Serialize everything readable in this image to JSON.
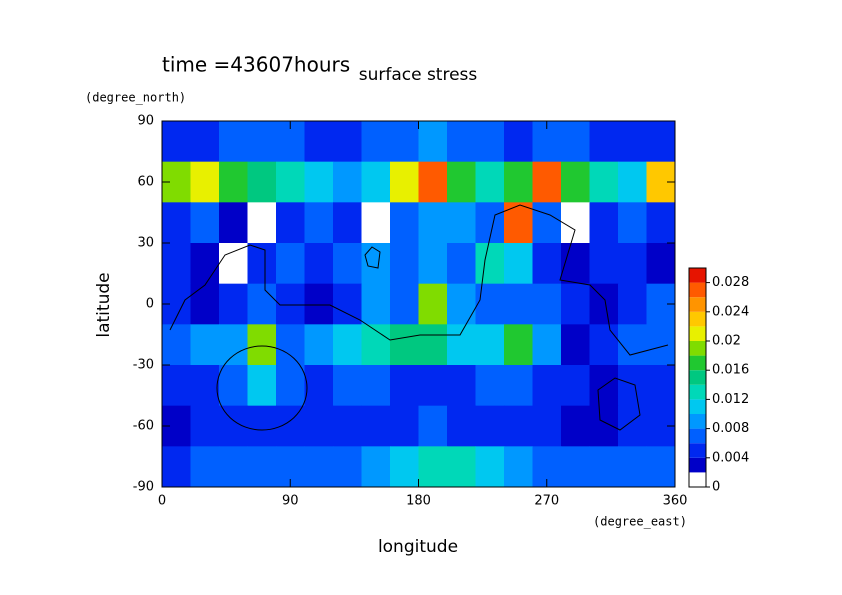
{
  "chart_data": {
    "type": "contour",
    "title": "surface stress",
    "subtitle": "time =43607hours",
    "x_label": "longitude",
    "x_unit": "(degree_east)",
    "y_label": "latitude",
    "y_unit": "(degree_north)",
    "x": [
      10,
      30,
      50,
      70,
      90,
      110,
      130,
      150,
      170,
      190,
      210,
      230,
      250,
      270,
      290,
      310,
      330,
      350
    ],
    "y": [
      80,
      60,
      40,
      20,
      0,
      -20,
      -40,
      -60,
      -80
    ],
    "values": [
      [
        0.004,
        0.004,
        0.006,
        0.006,
        0.006,
        0.004,
        0.004,
        0.006,
        0.006,
        0.008,
        0.006,
        0.006,
        0.004,
        0.006,
        0.006,
        0.004,
        0.004,
        0.004
      ],
      [
        0.018,
        0.02,
        0.016,
        0.014,
        0.012,
        0.01,
        0.008,
        0.01,
        0.02,
        0.026,
        0.016,
        0.012,
        0.016,
        0.026,
        0.016,
        0.012,
        0.01,
        0.022
      ],
      [
        0.004,
        0.006,
        0.002,
        0,
        0.004,
        0.006,
        0.004,
        0,
        0.006,
        0.008,
        0.008,
        0.006,
        0.026,
        0.006,
        0,
        0.004,
        0.006,
        0.004
      ],
      [
        0.004,
        0.002,
        0,
        0.004,
        0.006,
        0.004,
        0.006,
        0.008,
        0.006,
        0.008,
        0.006,
        0.012,
        0.01,
        0.004,
        0.002,
        0.004,
        0.004,
        0.002
      ],
      [
        0.004,
        0.002,
        0.004,
        0.006,
        0.004,
        0.002,
        0.004,
        0.008,
        0.006,
        0.018,
        0.008,
        0.006,
        0.006,
        0.006,
        0.004,
        0.002,
        0.004,
        0.006
      ],
      [
        0.006,
        0.008,
        0.008,
        0.018,
        0.006,
        0.008,
        0.01,
        0.012,
        0.014,
        0.014,
        0.01,
        0.01,
        0.016,
        0.008,
        0.002,
        0.004,
        0.006,
        0.006
      ],
      [
        0.004,
        0.004,
        0.006,
        0.01,
        0.006,
        0.004,
        0.006,
        0.006,
        0.004,
        0.004,
        0.004,
        0.006,
        0.006,
        0.004,
        0.004,
        0.002,
        0.004,
        0.004
      ],
      [
        0.002,
        0.004,
        0.004,
        0.004,
        0.004,
        0.004,
        0.004,
        0.004,
        0.004,
        0.006,
        0.004,
        0.004,
        0.004,
        0.004,
        0.002,
        0.002,
        0.004,
        0.004
      ],
      [
        0.004,
        0.006,
        0.006,
        0.006,
        0.006,
        0.006,
        0.006,
        0.008,
        0.01,
        0.012,
        0.012,
        0.01,
        0.008,
        0.006,
        0.006,
        0.006,
        0.006,
        0.006
      ]
    ],
    "xlim": [
      0,
      360
    ],
    "ylim": [
      -90,
      90
    ],
    "xticks": [
      0,
      90,
      180,
      270,
      360
    ],
    "yticks": [
      -90,
      -60,
      -30,
      0,
      30,
      60,
      90
    ],
    "levels": [
      0,
      0.002,
      0.004,
      0.006,
      0.008,
      0.01,
      0.012,
      0.014,
      0.016,
      0.018,
      0.02,
      0.022,
      0.024,
      0.026,
      0.028
    ],
    "colors": [
      "#ffffff",
      "#0000c8",
      "#0028f0",
      "#0060ff",
      "#0098ff",
      "#00c8f0",
      "#00d8b8",
      "#00c880",
      "#20c830",
      "#80dc00",
      "#e8f000",
      "#ffc800",
      "#ff9400",
      "#ff5a00",
      "#e61400"
    ],
    "clim": [
      0,
      0.03
    ],
    "cticks": [
      0,
      0.004,
      0.008,
      0.012,
      0.016,
      0.02,
      0.024,
      0.028
    ]
  }
}
